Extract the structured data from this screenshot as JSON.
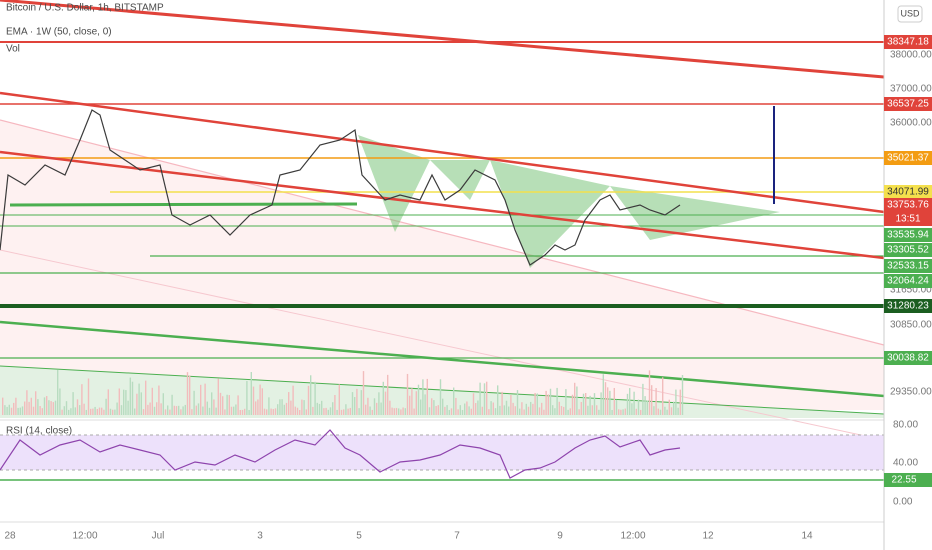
{
  "header": {
    "title": "Bitcoin / U.S. Dollar, 1h, BITSTAMP",
    "indicator": "EMA · 1W (50, close, 0)",
    "volume": "Vol",
    "currency": "USD"
  },
  "price_axis": [
    "38000.00",
    "37000.00",
    "36000.00",
    "31650.00",
    "30850.00",
    "29350.00"
  ],
  "price_tags": [
    "38347.18",
    "36537.25",
    "35021.37",
    "34071.99",
    "33753.76",
    "13:51",
    "33535.94",
    "33305.52",
    "32533.15",
    "32064.24",
    "31280.23",
    "30038.82"
  ],
  "rsi": {
    "title": "RSI (14, close)",
    "axis": [
      "80.00",
      "40.00",
      "0.00"
    ],
    "tag": "22.55"
  },
  "time_axis": [
    "28",
    "12:00",
    "Jul",
    "3",
    "5",
    "7",
    "9",
    "12:00",
    "12",
    "14"
  ]
}
